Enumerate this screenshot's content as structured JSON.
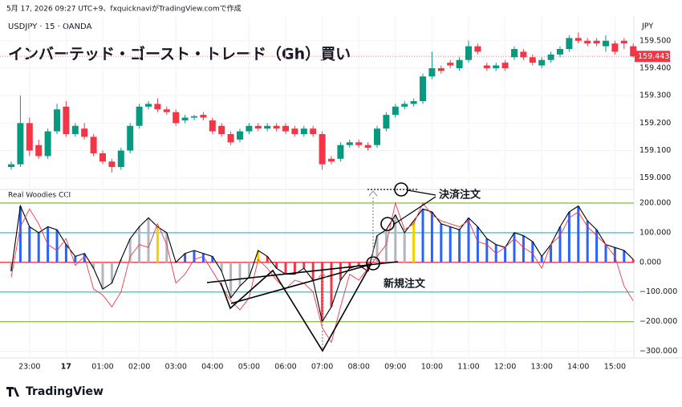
{
  "header": {
    "credit": "5月 17, 2026 09:27 UTC+9、fxquicknaviがTradingView.comで作成",
    "symbol": "USDJPY · 15 · OANDA",
    "title": "インバーテッド・ゴースト・トレード（Gh）買い",
    "currency": "JPY",
    "logo": "TradingView"
  },
  "chart_data": [
    {
      "type": "candlestick",
      "categories": [
        null,
        null,
        "23:00",
        null,
        null,
        null,
        "17",
        null,
        null,
        null,
        "01:00",
        null,
        null,
        null,
        "02:00",
        null,
        null,
        null,
        "03:00",
        null,
        null,
        null,
        "04:00",
        null,
        null,
        null,
        "05:00",
        null,
        null,
        null,
        "06:00",
        null,
        null,
        null,
        "07:00",
        null,
        null,
        null,
        "08:00",
        null,
        null,
        null,
        "09:00",
        null,
        null,
        null,
        "10:00",
        null,
        null,
        null,
        "11:00",
        null,
        null,
        null,
        "12:00",
        null,
        null,
        null,
        "13:00",
        null,
        null,
        null,
        "14:00",
        null,
        null,
        null,
        "15:00",
        null,
        null
      ],
      "open": [
        159.04,
        159.05,
        159.2,
        159.12,
        159.08,
        159.17,
        159.26,
        159.16,
        159.18,
        159.15,
        159.09,
        159.06,
        159.04,
        159.1,
        159.19,
        159.26,
        159.27,
        159.25,
        159.24,
        159.21,
        159.22,
        159.23,
        159.21,
        159.19,
        159.16,
        159.14,
        159.17,
        159.19,
        159.18,
        159.19,
        159.19,
        159.18,
        159.16,
        159.18,
        159.16,
        159.07,
        159.07,
        159.12,
        159.13,
        159.12,
        159.12,
        159.18,
        159.23,
        159.26,
        159.27,
        159.28,
        159.37,
        159.4,
        159.42,
        159.4,
        159.43,
        159.48,
        159.41,
        159.4,
        159.42,
        159.44,
        159.46,
        159.44,
        159.41,
        159.43,
        159.45,
        159.47,
        159.51,
        159.5,
        159.5,
        159.48,
        159.49,
        159.5,
        159.48
      ],
      "high": [
        159.06,
        159.3,
        159.22,
        159.14,
        159.18,
        159.27,
        159.28,
        159.2,
        159.2,
        159.16,
        159.1,
        159.07,
        159.11,
        159.2,
        159.27,
        159.28,
        159.29,
        159.26,
        159.25,
        159.23,
        159.23,
        159.24,
        159.22,
        159.2,
        159.17,
        159.18,
        159.2,
        159.2,
        159.2,
        159.2,
        159.2,
        159.19,
        159.19,
        159.19,
        159.17,
        159.08,
        159.13,
        159.14,
        159.14,
        159.13,
        159.19,
        159.24,
        159.27,
        159.28,
        159.29,
        159.38,
        159.46,
        159.41,
        159.43,
        159.44,
        159.5,
        159.49,
        159.42,
        159.42,
        159.43,
        159.48,
        159.47,
        159.45,
        159.44,
        159.46,
        159.48,
        159.52,
        159.53,
        159.51,
        159.51,
        159.52,
        159.5,
        159.51,
        159.49
      ],
      "low": [
        159.03,
        159.04,
        159.08,
        159.07,
        159.07,
        159.16,
        159.15,
        159.15,
        159.14,
        159.08,
        159.05,
        159.02,
        159.03,
        159.09,
        159.18,
        159.25,
        159.24,
        159.23,
        159.19,
        159.2,
        159.21,
        159.21,
        159.16,
        159.15,
        159.12,
        159.13,
        159.16,
        159.17,
        159.17,
        159.17,
        159.16,
        159.15,
        159.15,
        159.15,
        159.03,
        159.05,
        159.06,
        159.11,
        159.11,
        159.1,
        159.11,
        159.17,
        159.22,
        159.25,
        159.26,
        159.27,
        159.36,
        159.38,
        159.4,
        159.39,
        159.42,
        159.45,
        159.39,
        159.39,
        159.39,
        159.43,
        159.43,
        159.41,
        159.4,
        159.42,
        159.44,
        159.46,
        159.49,
        159.48,
        159.48,
        159.46,
        159.45,
        159.47,
        159.44
      ],
      "close": [
        159.05,
        159.2,
        159.1,
        159.08,
        159.17,
        159.25,
        159.16,
        159.19,
        159.15,
        159.09,
        159.06,
        159.04,
        159.1,
        159.19,
        159.26,
        159.27,
        159.25,
        159.24,
        159.2,
        159.22,
        159.225,
        159.22,
        159.17,
        159.16,
        159.13,
        159.17,
        159.19,
        159.18,
        159.19,
        159.18,
        159.17,
        159.16,
        159.18,
        159.16,
        159.05,
        159.06,
        159.12,
        159.13,
        159.12,
        159.11,
        159.18,
        159.23,
        159.26,
        159.27,
        159.28,
        159.37,
        159.4,
        159.39,
        159.41,
        159.43,
        159.48,
        159.46,
        159.4,
        159.41,
        159.4,
        159.47,
        159.44,
        159.42,
        159.43,
        159.45,
        159.47,
        159.51,
        159.5,
        159.49,
        159.49,
        159.5,
        159.46,
        159.49,
        159.443
      ],
      "last_label": "159.443",
      "up_color": "#089981",
      "down_color": "#f23645",
      "ylim": [
        158.97,
        159.59
      ],
      "yticks": [
        {
          "value": 159,
          "label": "159.000"
        },
        {
          "value": 159.1,
          "label": "159.100"
        },
        {
          "value": 159.2,
          "label": "159.200"
        },
        {
          "value": 159.3,
          "label": "159.300"
        },
        {
          "value": 159.4,
          "label": "159.400"
        },
        {
          "value": 159.5,
          "label": "159.500"
        }
      ],
      "grid": true
    },
    {
      "type": "histogram-line",
      "title": "Real Woodies CCI",
      "series": [
        {
          "color": "#000000",
          "values": [
            -30,
            190,
            120,
            100,
            120,
            110,
            60,
            20,
            30,
            -20,
            -90,
            -70,
            10,
            80,
            120,
            150,
            120,
            100,
            0,
            30,
            40,
            30,
            20,
            -30,
            -120,
            -80,
            -50,
            40,
            20,
            -20,
            -40,
            -40,
            -20,
            -60,
            -200,
            -150,
            -60,
            -20,
            -10,
            -30,
            90,
            110,
            160,
            100,
            140,
            180,
            170,
            130,
            120,
            110,
            150,
            120,
            80,
            60,
            50,
            100,
            90,
            70,
            20,
            60,
            120,
            170,
            190,
            140,
            110,
            60,
            50,
            40,
            10
          ],
          "bar_colors": [
            "#b2b5be",
            "#2962ff",
            "#2962ff",
            "#2962ff",
            "#2962ff",
            "#2962ff",
            "#2962ff",
            "#2962ff",
            "#2962ff",
            "#b2b5be",
            "#b2b5be",
            "#b2b5be",
            "#b2b5be",
            "#b2b5be",
            "#b2b5be",
            "#b2b5be",
            "#f5d000",
            "#b2b5be",
            "#2962ff",
            "#2962ff",
            "#2962ff",
            "#2962ff",
            "#2962ff",
            "#b2b5be",
            "#b2b5be",
            "#b2b5be",
            "#b2b5be",
            "#f5d000",
            "#f23645",
            "#f23645",
            "#f23645",
            "#f23645",
            "#f23645",
            "#f23645",
            "#f23645",
            "#f23645",
            "#f23645",
            "#f23645",
            "#f23645",
            "#f23645",
            "#b2b5be",
            "#b2b5be",
            "#b2b5be",
            "#b2b5be",
            "#f5d000",
            "#2962ff",
            "#2962ff",
            "#2962ff",
            "#2962ff",
            "#2962ff",
            "#2962ff",
            "#2962ff",
            "#2962ff",
            "#2962ff",
            "#2962ff",
            "#2962ff",
            "#2962ff",
            "#2962ff",
            "#2962ff",
            "#2962ff",
            "#2962ff",
            "#2962ff",
            "#2962ff",
            "#2962ff",
            "#2962ff",
            "#2962ff",
            "#2962ff",
            "#2962ff",
            "#f23645"
          ]
        },
        {
          "color": "#f23645",
          "values": [
            -50,
            120,
            180,
            130,
            60,
            40,
            80,
            -10,
            20,
            -90,
            -110,
            -150,
            -100,
            20,
            60,
            50,
            130,
            60,
            -70,
            -40,
            10,
            20,
            -30,
            -80,
            -130,
            -160,
            -120,
            10,
            -20,
            -60,
            -90,
            -60,
            -70,
            -100,
            -220,
            -270,
            -150,
            -40,
            -60,
            -20,
            20,
            60,
            200,
            110,
            130,
            200,
            160,
            140,
            130,
            120,
            140,
            70,
            60,
            30,
            50,
            80,
            50,
            30,
            -20,
            60,
            90,
            150,
            170,
            120,
            90,
            60,
            20,
            -80,
            -130
          ]
        }
      ],
      "levels": [
        {
          "value": 200,
          "color": "#8bc34a"
        },
        {
          "value": 100,
          "color": "#26c6da"
        },
        {
          "value": 0,
          "color": "#f23645"
        },
        {
          "value": -100,
          "color": "#26c6da"
        },
        {
          "value": -200,
          "color": "#8bc34a"
        }
      ],
      "ylim": [
        -320,
        235
      ],
      "yticks": [
        {
          "value": 200,
          "label": "200.000"
        },
        {
          "value": 100,
          "label": "100.000"
        },
        {
          "value": 0,
          "label": "0.000"
        },
        {
          "value": -100,
          "label": "−100.000"
        },
        {
          "value": -200,
          "label": "−200.000"
        },
        {
          "value": -300,
          "label": "−300.000"
        }
      ],
      "annotations": [
        "決済注文",
        "新規注文"
      ]
    }
  ]
}
